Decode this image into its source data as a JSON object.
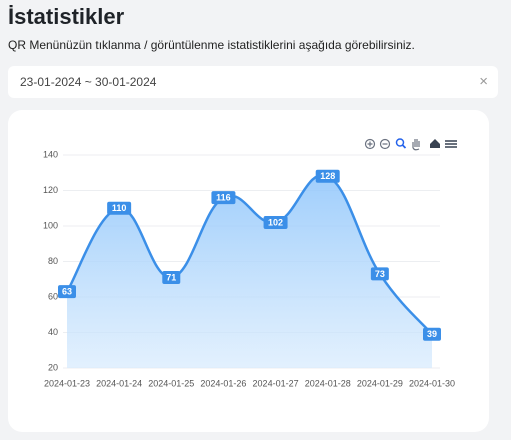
{
  "header": {
    "title": "İstatistikler",
    "subtitle": "QR Menünüzün tıklanma / görüntülenme istatistiklerini aşağıda görebilirsiniz."
  },
  "date_range": {
    "value": "23-01-2024 ~ 30-01-2024"
  },
  "chart_data": {
    "type": "area",
    "categories": [
      "2024-01-23",
      "2024-01-24",
      "2024-01-25",
      "2024-01-26",
      "2024-01-27",
      "2024-01-28",
      "2024-01-29",
      "2024-01-30"
    ],
    "values": [
      63,
      110,
      71,
      116,
      102,
      128,
      73,
      39
    ],
    "color": "#3b8fe8",
    "ylim": [
      20,
      140
    ],
    "yticks": [
      20,
      40,
      60,
      80,
      100,
      120,
      140
    ],
    "grid": true
  }
}
